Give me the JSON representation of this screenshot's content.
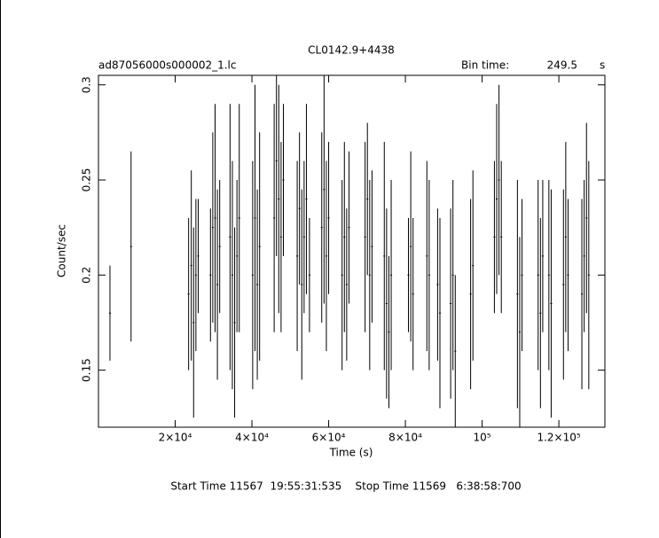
{
  "chart_data": {
    "type": "errorbar",
    "title": "CL0142.9+4438",
    "subtitle": "ad87056000s000002_1.lc",
    "bin_time_label": "Bin time:",
    "bin_time": 249.5,
    "bin_time_unit": "s",
    "xlabel": "Time (s)",
    "ylabel": "Count/sec",
    "footer": "Start Time 11567  19:55:31:535    Stop Time 11569   6:38:58:700",
    "color": "#000000",
    "xlim": [
      0,
      132000
    ],
    "ylim": [
      0.12,
      0.305
    ],
    "xticks": [
      {
        "value": 20000,
        "label": "2×10⁴"
      },
      {
        "value": 40000,
        "label": "4×10⁴"
      },
      {
        "value": 60000,
        "label": "6×10⁴"
      },
      {
        "value": 80000,
        "label": "8×10⁴"
      },
      {
        "value": 100000,
        "label": "10⁵"
      },
      {
        "value": 120000,
        "label": "1.2×10⁵"
      }
    ],
    "yticks": [
      0.15,
      0.2,
      0.25,
      0.3
    ],
    "x": [
      3000,
      8500,
      23500,
      24200,
      24800,
      25400,
      26000,
      29200,
      29800,
      30400,
      31000,
      31600,
      34300,
      34900,
      35500,
      36100,
      36700,
      40200,
      40800,
      41400,
      42000,
      45800,
      46400,
      47000,
      47600,
      48200,
      51800,
      52400,
      53000,
      53600,
      54200,
      55000,
      58200,
      58800,
      59400,
      60000,
      63500,
      64100,
      64700,
      65300,
      69500,
      70100,
      70700,
      71300,
      74500,
      75100,
      75700,
      76300,
      80800,
      81400,
      82000,
      85600,
      86200,
      88400,
      89000,
      91800,
      92400,
      93000,
      97000,
      97600,
      103200,
      103800,
      104400,
      105000,
      109200,
      109800,
      110400,
      114600,
      115200,
      115800,
      117400,
      118000,
      121200,
      121800,
      122400,
      126000,
      126600,
      127200,
      127800
    ],
    "values": [
      0.18,
      0.215,
      0.19,
      0.205,
      0.175,
      0.2,
      0.21,
      0.2,
      0.225,
      0.23,
      0.195,
      0.215,
      0.22,
      0.2,
      0.175,
      0.21,
      0.23,
      0.2,
      0.23,
      0.195,
      0.215,
      0.23,
      0.26,
      0.24,
      0.22,
      0.25,
      0.21,
      0.235,
      0.195,
      0.22,
      0.24,
      0.2,
      0.225,
      0.245,
      0.21,
      0.23,
      0.2,
      0.22,
      0.195,
      0.225,
      0.22,
      0.24,
      0.2,
      0.215,
      0.21,
      0.185,
      0.17,
      0.2,
      0.2,
      0.215,
      0.19,
      0.21,
      0.2,
      0.195,
      0.18,
      0.185,
      0.2,
      0.16,
      0.19,
      0.205,
      0.22,
      0.24,
      0.25,
      0.22,
      0.19,
      0.17,
      0.2,
      0.2,
      0.18,
      0.21,
      0.2,
      0.185,
      0.195,
      0.22,
      0.2,
      0.19,
      0.21,
      0.23,
      0.2
    ],
    "errors": [
      0.025,
      0.05,
      0.04,
      0.05,
      0.05,
      0.04,
      0.03,
      0.035,
      0.05,
      0.06,
      0.05,
      0.035,
      0.07,
      0.06,
      0.05,
      0.04,
      0.06,
      0.06,
      0.07,
      0.05,
      0.06,
      0.06,
      0.05,
      0.06,
      0.05,
      0.04,
      0.05,
      0.04,
      0.05,
      0.04,
      0.05,
      0.03,
      0.05,
      0.06,
      0.05,
      0.04,
      0.05,
      0.05,
      0.04,
      0.04,
      0.05,
      0.04,
      0.05,
      0.04,
      0.06,
      0.05,
      0.04,
      0.05,
      0.03,
      0.05,
      0.04,
      0.05,
      0.05,
      0.04,
      0.05,
      0.05,
      0.05,
      0.04,
      0.05,
      0.05,
      0.04,
      0.05,
      0.05,
      0.04,
      0.06,
      0.05,
      0.04,
      0.05,
      0.05,
      0.04,
      0.05,
      0.06,
      0.05,
      0.05,
      0.04,
      0.05,
      0.04,
      0.05,
      0.06
    ]
  }
}
